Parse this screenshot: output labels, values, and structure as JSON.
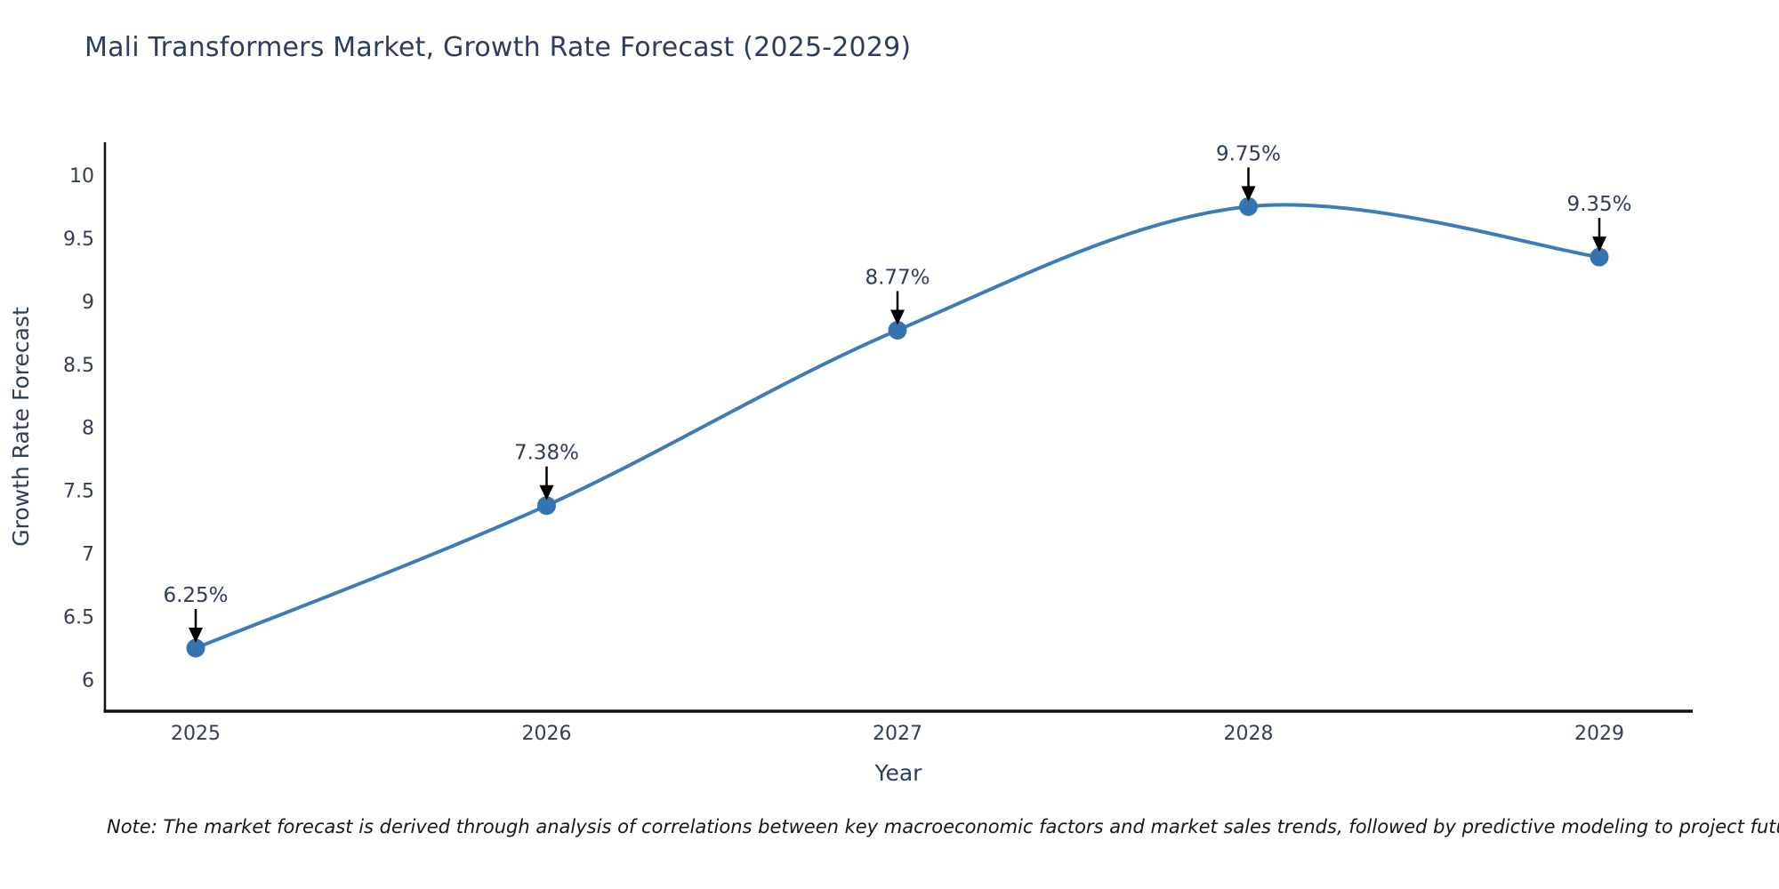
{
  "chart_data": {
    "type": "line",
    "title": "Mali Transformers Market, Growth Rate Forecast (2025-2029)",
    "xlabel": "Year",
    "ylabel": "Growth Rate Forecast",
    "x": [
      2025,
      2026,
      2027,
      2028,
      2029
    ],
    "values": [
      6.25,
      7.38,
      8.77,
      9.75,
      9.35
    ],
    "point_labels": [
      "6.25%",
      "7.38%",
      "8.77%",
      "9.75%",
      "9.35%"
    ],
    "yticks": [
      6,
      6.5,
      7,
      7.5,
      8,
      8.5,
      9,
      9.5,
      10
    ],
    "ylim": [
      5.75,
      10.26
    ],
    "grid": false,
    "legend": "none",
    "line_color": "#3d7cb8",
    "marker_color": "#3474b0",
    "arrow_color": "#000000",
    "axis_color": "#111111",
    "smooth": true
  },
  "footnote": "Note: The market forecast is derived through analysis of correlations between key macroeconomic factors and market sales trends, followed by predictive modeling to project future sales"
}
